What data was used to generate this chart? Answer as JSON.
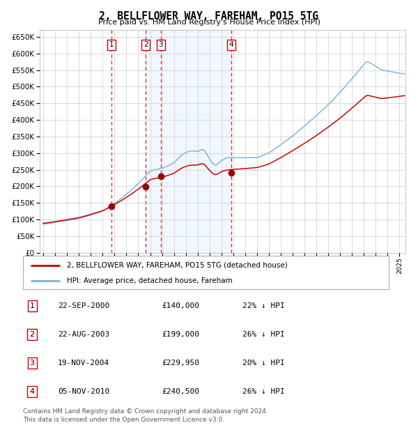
{
  "title": "2, BELLFLOWER WAY, FAREHAM, PO15 5TG",
  "subtitle": "Price paid vs. HM Land Registry's House Price Index (HPI)",
  "ytick_vals": [
    0,
    50000,
    100000,
    150000,
    200000,
    250000,
    300000,
    350000,
    400000,
    450000,
    500000,
    550000,
    600000,
    650000
  ],
  "ylim": [
    0,
    670000
  ],
  "xlim_start": 1994.7,
  "xlim_end": 2025.5,
  "sale_dates": [
    2000.73,
    2003.64,
    2004.89,
    2010.84
  ],
  "sale_prices": [
    140000,
    199000,
    229950,
    240500
  ],
  "sale_labels": [
    "1",
    "2",
    "3",
    "4"
  ],
  "dashed_line_color": "#cc0000",
  "marker_color": "#990000",
  "line_color_red": "#cc0000",
  "line_color_blue": "#7ab0d4",
  "shade_color": "#ddeeff",
  "grid_color": "#cccccc",
  "background_color": "#ffffff",
  "legend_items": [
    "2, BELLFLOWER WAY, FAREHAM, PO15 5TG (detached house)",
    "HPI: Average price, detached house, Fareham"
  ],
  "table_rows": [
    [
      "1",
      "22-SEP-2000",
      "£140,000",
      "22% ↓ HPI"
    ],
    [
      "2",
      "22-AUG-2003",
      "£199,000",
      "26% ↓ HPI"
    ],
    [
      "3",
      "19-NOV-2004",
      "£229,950",
      "20% ↓ HPI"
    ],
    [
      "4",
      "05-NOV-2010",
      "£240,500",
      "26% ↓ HPI"
    ]
  ],
  "footer": "Contains HM Land Registry data © Crown copyright and database right 2024.\nThis data is licensed under the Open Government Licence v3.0.",
  "shade_x1": 2003.64,
  "shade_x2": 2010.84
}
